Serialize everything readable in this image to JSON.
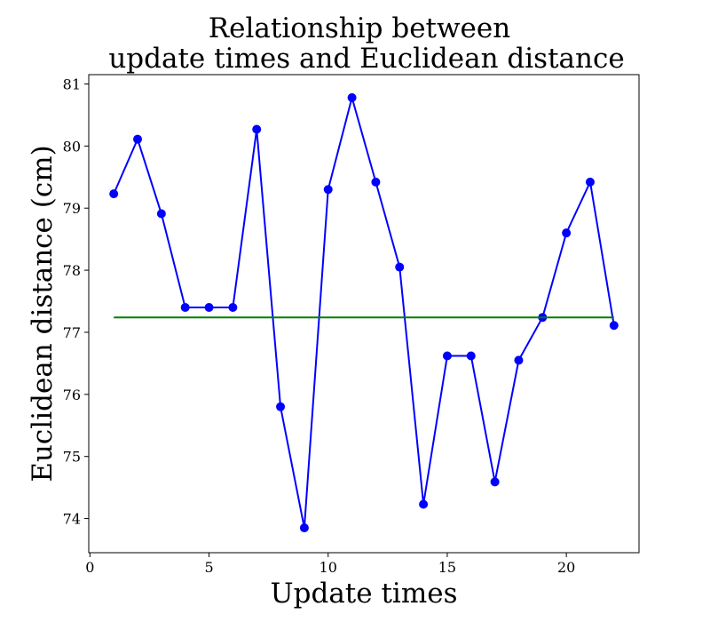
{
  "chart_data": {
    "type": "line",
    "title_lines": [
      "Relationship between",
      "update times and Euclidean distance"
    ],
    "xlabel": "Update times",
    "ylabel": "Euclidean distance (cm)",
    "xlim": [
      -0.05,
      23.05
    ],
    "ylim": [
      73.45,
      81.15
    ],
    "xticks": [
      0,
      5,
      10,
      15,
      20
    ],
    "yticks": [
      74,
      75,
      76,
      77,
      78,
      79,
      80,
      81
    ],
    "grid": false,
    "series": [
      {
        "color": "#0000ff",
        "marker": "circle",
        "x": [
          1,
          2,
          3,
          4,
          5,
          6,
          7,
          8,
          9,
          10,
          11,
          12,
          13,
          14,
          15,
          16,
          17,
          18,
          19,
          20,
          21,
          22
        ],
        "values": [
          79.23,
          80.11,
          78.91,
          77.4,
          77.4,
          77.4,
          80.27,
          75.8,
          73.85,
          79.3,
          80.78,
          79.42,
          78.05,
          74.23,
          76.62,
          76.62,
          74.59,
          76.55,
          77.24,
          78.6,
          79.42,
          77.11
        ]
      },
      {
        "color": "#008000",
        "marker": "none",
        "x": [
          1,
          22
        ],
        "values": [
          77.24,
          77.24
        ]
      }
    ]
  }
}
